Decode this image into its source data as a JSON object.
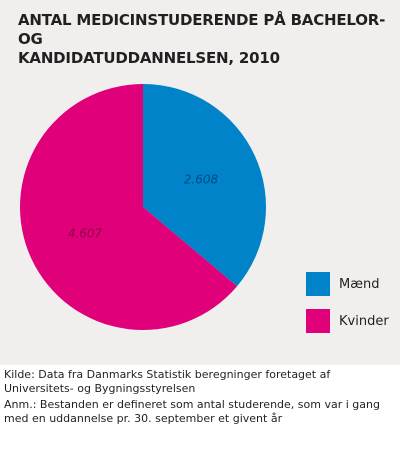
{
  "chart_data": {
    "type": "pie",
    "title_lines": [
      "ANTAL MEDICINSTUDERENDE PÅ BACHELOR- OG",
      "KANDIDATUDDANNELSEN, 2010"
    ],
    "slices": [
      {
        "name": "Mænd",
        "value": 2608,
        "label": "2.608",
        "color": "#0083c9",
        "label_color": "#004b80"
      },
      {
        "name": "Kvinder",
        "value": 4607,
        "label": "4.607",
        "color": "#e0007a",
        "label_color": "#8f0048"
      }
    ],
    "legend": {
      "placement": "right"
    }
  },
  "caption": {
    "source": "Kilde: Data fra Danmarks Statistik beregninger foretaget af Universitets- og Bygningsstyrelsen",
    "note": "Anm.: Bestanden er defineret som antal studerende, som var i gang med en uddannelse pr. 30. september et givent år"
  },
  "colors": {
    "panel_background": "#f0efed",
    "text": "#231f20"
  }
}
